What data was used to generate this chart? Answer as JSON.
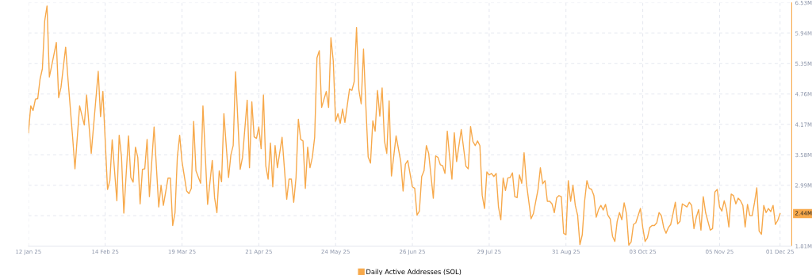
{
  "chart_data": {
    "type": "line",
    "x": [
      "2025-01-12",
      "2025-01-13",
      "2025-01-14",
      "2025-01-15",
      "2025-01-16",
      "2025-01-17",
      "2025-01-18",
      "2025-01-19",
      "2025-01-20",
      "2025-01-21",
      "2025-01-22",
      "2025-01-24",
      "2025-01-25",
      "2025-01-26",
      "2025-01-28",
      "2025-01-29",
      "2025-01-31",
      "2025-02-01",
      "2025-02-03",
      "2025-02-05",
      "2025-02-06",
      "2025-02-08",
      "2025-02-11",
      "2025-02-12",
      "2025-02-13",
      "2025-02-15",
      "2025-02-16",
      "2025-02-17",
      "2025-02-19",
      "2025-02-20",
      "2025-02-21",
      "2025-02-22",
      "2025-02-24",
      "2025-02-25",
      "2025-02-26",
      "2025-02-27",
      "2025-02-28",
      "2025-03-01",
      "2025-03-02",
      "2025-03-03",
      "2025-03-04",
      "2025-03-05",
      "2025-03-07",
      "2025-03-09",
      "2025-03-10",
      "2025-03-11",
      "2025-03-13",
      "2025-03-14",
      "2025-03-15",
      "2025-03-16",
      "2025-03-17",
      "2025-03-18",
      "2025-03-19",
      "2025-03-21",
      "2025-03-22",
      "2025-03-23",
      "2025-03-24",
      "2025-03-25",
      "2025-03-27",
      "2025-03-28",
      "2025-03-30",
      "2025-04-01",
      "2025-04-02",
      "2025-04-03",
      "2025-04-04",
      "2025-04-05",
      "2025-04-06",
      "2025-04-08",
      "2025-04-09",
      "2025-04-10",
      "2025-04-11",
      "2025-04-13",
      "2025-04-14",
      "2025-04-16",
      "2025-04-17",
      "2025-04-18",
      "2025-04-19",
      "2025-04-20",
      "2025-04-21",
      "2025-04-22",
      "2025-04-23",
      "2025-04-24",
      "2025-04-25",
      "2025-04-26",
      "2025-04-27",
      "2025-04-28",
      "2025-04-29",
      "2025-05-01",
      "2025-05-03",
      "2025-05-04",
      "2025-05-05",
      "2025-05-06",
      "2025-05-07",
      "2025-05-08",
      "2025-05-09",
      "2025-05-10",
      "2025-05-11",
      "2025-05-12",
      "2025-05-13",
      "2025-05-14",
      "2025-05-15",
      "2025-05-16",
      "2025-05-17",
      "2025-05-18",
      "2025-05-20",
      "2025-05-21",
      "2025-05-22",
      "2025-05-23",
      "2025-05-24",
      "2025-05-25",
      "2025-05-26",
      "2025-05-27",
      "2025-05-28",
      "2025-05-30",
      "2025-05-31",
      "2025-06-01",
      "2025-06-02",
      "2025-06-03",
      "2025-06-04",
      "2025-06-05",
      "2025-06-06",
      "2025-06-07",
      "2025-06-08",
      "2025-06-09",
      "2025-06-10",
      "2025-06-11",
      "2025-06-12",
      "2025-06-13",
      "2025-06-14",
      "2025-06-15",
      "2025-06-16",
      "2025-06-17",
      "2025-06-19",
      "2025-06-21",
      "2025-06-22",
      "2025-06-23",
      "2025-06-24",
      "2025-06-26",
      "2025-06-27",
      "2025-06-28",
      "2025-06-29",
      "2025-06-30",
      "2025-07-01",
      "2025-07-02",
      "2025-07-03",
      "2025-07-05",
      "2025-07-06",
      "2025-07-07",
      "2025-07-08",
      "2025-07-09",
      "2025-07-10",
      "2025-07-11",
      "2025-07-12",
      "2025-07-13",
      "2025-07-14",
      "2025-07-15",
      "2025-07-17",
      "2025-07-19",
      "2025-07-20",
      "2025-07-21",
      "2025-07-22",
      "2025-07-23",
      "2025-07-24",
      "2025-07-25",
      "2025-07-26",
      "2025-07-27",
      "2025-07-28",
      "2025-07-29",
      "2025-07-30",
      "2025-07-31",
      "2025-08-01",
      "2025-08-02",
      "2025-08-03",
      "2025-08-04",
      "2025-08-05",
      "2025-08-06",
      "2025-08-07",
      "2025-08-08",
      "2025-08-09",
      "2025-08-10",
      "2025-08-11",
      "2025-08-12",
      "2025-08-13",
      "2025-08-14",
      "2025-08-16",
      "2025-08-17",
      "2025-08-19",
      "2025-08-20",
      "2025-08-21",
      "2025-08-22",
      "2025-08-23",
      "2025-08-24",
      "2025-08-25",
      "2025-08-26",
      "2025-08-27",
      "2025-08-28",
      "2025-08-29",
      "2025-08-30",
      "2025-08-31",
      "2025-09-01",
      "2025-09-02",
      "2025-09-03",
      "2025-09-04",
      "2025-09-05",
      "2025-09-06",
      "2025-09-07",
      "2025-09-08",
      "2025-09-09",
      "2025-09-10",
      "2025-09-11",
      "2025-09-12",
      "2025-09-13",
      "2025-09-14",
      "2025-09-15",
      "2025-09-16",
      "2025-09-17",
      "2025-09-18",
      "2025-09-19",
      "2025-09-20",
      "2025-09-21",
      "2025-09-22",
      "2025-09-23",
      "2025-09-24",
      "2025-09-25",
      "2025-09-26",
      "2025-09-27",
      "2025-09-28",
      "2025-09-29",
      "2025-09-30",
      "2025-10-02",
      "2025-10-03",
      "2025-10-04",
      "2025-10-05",
      "2025-10-06",
      "2025-10-07",
      "2025-10-08",
      "2025-10-09",
      "2025-10-10",
      "2025-10-11",
      "2025-10-12",
      "2025-10-13",
      "2025-10-14",
      "2025-10-15",
      "2025-10-16",
      "2025-10-17",
      "2025-10-18",
      "2025-10-19",
      "2025-10-20",
      "2025-10-22",
      "2025-10-23",
      "2025-10-24",
      "2025-10-25",
      "2025-10-26",
      "2025-10-27",
      "2025-10-28",
      "2025-10-29",
      "2025-10-30",
      "2025-11-01",
      "2025-11-02",
      "2025-11-03",
      "2025-11-04",
      "2025-11-05",
      "2025-11-06",
      "2025-11-07",
      "2025-11-08",
      "2025-11-09",
      "2025-11-10",
      "2025-11-11",
      "2025-11-12",
      "2025-11-13",
      "2025-11-14",
      "2025-11-15",
      "2025-11-16",
      "2025-11-17",
      "2025-11-18",
      "2025-11-19",
      "2025-11-20",
      "2025-11-21",
      "2025-11-22",
      "2025-11-23",
      "2025-11-24",
      "2025-11-25",
      "2025-11-26",
      "2025-11-27",
      "2025-11-28",
      "2025-11-29",
      "2025-11-30",
      "2025-12-01"
    ],
    "series": [
      {
        "name": "Daily Active Addresses (SOL)",
        "color": "#f7a94b",
        "values": [
          4.01,
          4.53,
          4.44,
          4.66,
          4.67,
          5.05,
          5.25,
          6.18,
          6.47,
          5.09,
          5.31,
          5.76,
          4.69,
          4.89,
          5.67,
          5.05,
          3.92,
          3.31,
          4.53,
          4.16,
          4.74,
          3.61,
          5.2,
          4.32,
          4.81,
          2.91,
          3.08,
          3.87,
          2.69,
          3.96,
          3.54,
          2.45,
          3.95,
          3.14,
          3.05,
          3.73,
          3.53,
          2.63,
          3.3,
          3.31,
          3.88,
          2.77,
          4.12,
          2.57,
          2.99,
          2.6,
          3.13,
          3.13,
          2.21,
          2.46,
          3.54,
          3.96,
          3.45,
          2.88,
          2.83,
          2.93,
          4.23,
          3.27,
          3.03,
          4.53,
          2.62,
          3.47,
          2.75,
          2.46,
          3.27,
          3.06,
          4.38,
          3.14,
          3.58,
          3.76,
          5.19,
          3.3,
          3.53,
          4.64,
          3.33,
          4.61,
          3.93,
          3.9,
          4.12,
          3.7,
          4.74,
          3.37,
          3.11,
          3.81,
          2.96,
          3.76,
          3.33,
          3.92,
          2.72,
          3.11,
          3.11,
          2.66,
          3.14,
          4.27,
          3.88,
          3.85,
          2.93,
          3.73,
          3.33,
          3.53,
          3.92,
          5.46,
          5.6,
          4.5,
          4.81,
          4.5,
          5.85,
          5.4,
          4.23,
          4.38,
          4.19,
          4.47,
          4.21,
          4.86,
          4.83,
          5.0,
          6.05,
          4.84,
          4.57,
          5.63,
          4.53,
          3.54,
          3.42,
          4.24,
          4.04,
          4.83,
          4.33,
          4.88,
          3.85,
          3.61,
          4.63,
          3.17,
          3.95,
          3.45,
          2.88,
          3.4,
          3.47,
          2.96,
          2.93,
          2.41,
          2.49,
          3.16,
          3.27,
          3.76,
          3.61,
          2.74,
          3.56,
          3.53,
          3.39,
          3.37,
          3.22,
          4.04,
          3.54,
          3.11,
          4.01,
          3.45,
          4.07,
          3.36,
          3.31,
          4.13,
          3.84,
          3.76,
          3.85,
          3.76,
          2.8,
          2.54,
          3.25,
          3.19,
          3.22,
          3.16,
          3.22,
          2.57,
          2.32,
          3.13,
          2.89,
          3.13,
          3.14,
          3.23,
          2.77,
          2.75,
          3.19,
          3.03,
          3.62,
          3.03,
          2.34,
          2.44,
          2.91,
          3.33,
          3.02,
          3.08,
          2.68,
          2.68,
          2.63,
          2.46,
          2.75,
          2.79,
          2.77,
          2.06,
          2.03,
          3.08,
          2.68,
          2.99,
          2.6,
          2.41,
          1.84,
          2.03,
          2.68,
          3.08,
          2.93,
          2.91,
          2.79,
          2.37,
          2.52,
          2.6,
          2.51,
          2.62,
          2.41,
          2.34,
          2.0,
          1.9,
          2.29,
          2.46,
          2.32,
          2.65,
          2.44,
          1.83,
          1.89,
          2.23,
          2.26,
          2.54,
          2.17,
          1.9,
          1.97,
          2.17,
          2.21,
          2.21,
          2.26,
          2.46,
          2.4,
          2.17,
          2.06,
          2.17,
          2.23,
          2.44,
          2.66,
          2.24,
          2.29,
          2.63,
          2.57,
          2.66,
          2.6,
          2.15,
          2.37,
          2.52,
          2.12,
          2.77,
          2.46,
          2.12,
          2.15,
          2.86,
          2.91,
          2.57,
          2.49,
          2.69,
          2.52,
          2.18,
          2.82,
          2.79,
          2.63,
          2.74,
          2.69,
          2.6,
          2.18,
          2.62,
          2.4,
          2.4,
          2.65,
          2.94,
          2.1,
          2.04,
          2.6,
          2.46,
          2.54,
          2.48,
          2.6,
          2.23,
          2.31,
          2.44
        ]
      }
    ],
    "xlim": [
      "2025-01-12",
      "2025-12-06"
    ],
    "xticks": [
      {
        "value": "2025-01-12",
        "label": "12 Jan 25"
      },
      {
        "value": "2025-02-14",
        "label": "14 Feb 25"
      },
      {
        "value": "2025-03-19",
        "label": "19 Mar 25"
      },
      {
        "value": "2025-04-21",
        "label": "21 Apr 25"
      },
      {
        "value": "2025-05-24",
        "label": "24 May 25"
      },
      {
        "value": "2025-06-26",
        "label": "26 Jun 25"
      },
      {
        "value": "2025-07-29",
        "label": "29 Jul 25"
      },
      {
        "value": "2025-08-31",
        "label": "31 Aug 25"
      },
      {
        "value": "2025-10-03",
        "label": "03 Oct 25"
      },
      {
        "value": "2025-11-05",
        "label": "05 Nov 25"
      },
      {
        "value": "2025-12-01",
        "label": "01 Dec 25"
      }
    ],
    "ylim": [
      1.81,
      6.53
    ],
    "yticks": [
      {
        "value": 1.81,
        "label": "1.81M"
      },
      {
        "value": 2.4,
        "label": null
      },
      {
        "value": 2.99,
        "label": "2.99M"
      },
      {
        "value": 3.58,
        "label": "3.58M"
      },
      {
        "value": 4.17,
        "label": "4.17M"
      },
      {
        "value": 4.76,
        "label": "4.76M"
      },
      {
        "value": 5.35,
        "label": "5.35M"
      },
      {
        "value": 5.94,
        "label": "5.94M"
      },
      {
        "value": 6.53,
        "label": "6.53M"
      }
    ],
    "annotations": [
      {
        "text": "2.44M",
        "y": 2.44
      }
    ],
    "grid": true,
    "legend": "bottom",
    "line_style": "solid",
    "marker": "none"
  }
}
